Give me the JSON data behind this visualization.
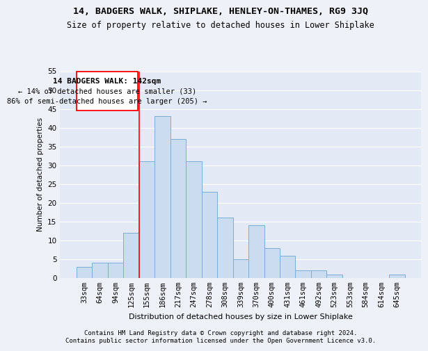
{
  "title": "14, BADGERS WALK, SHIPLAKE, HENLEY-ON-THAMES, RG9 3JQ",
  "subtitle": "Size of property relative to detached houses in Lower Shiplake",
  "xlabel": "Distribution of detached houses by size in Lower Shiplake",
  "ylabel": "Number of detached properties",
  "bar_color": "#ccdcf0",
  "bar_edge_color": "#7aaed6",
  "categories": [
    "33sqm",
    "64sqm",
    "94sqm",
    "125sqm",
    "155sqm",
    "186sqm",
    "217sqm",
    "247sqm",
    "278sqm",
    "308sqm",
    "339sqm",
    "370sqm",
    "400sqm",
    "431sqm",
    "461sqm",
    "492sqm",
    "523sqm",
    "553sqm",
    "584sqm",
    "614sqm",
    "645sqm"
  ],
  "values": [
    3,
    4,
    4,
    12,
    31,
    43,
    37,
    31,
    23,
    16,
    5,
    14,
    8,
    6,
    2,
    2,
    1,
    0,
    0,
    0,
    1
  ],
  "ylim": [
    0,
    55
  ],
  "yticks": [
    0,
    5,
    10,
    15,
    20,
    25,
    30,
    35,
    40,
    45,
    50,
    55
  ],
  "annotation_title": "14 BADGERS WALK: 142sqm",
  "annotation_line1": "← 14% of detached houses are smaller (33)",
  "annotation_line2": "86% of semi-detached houses are larger (205) →",
  "footer1": "Contains HM Land Registry data © Crown copyright and database right 2024.",
  "footer2": "Contains public sector information licensed under the Open Government Licence v3.0.",
  "background_color": "#eef2f8",
  "plot_bg_color": "#e4eaf5",
  "grid_color": "#ffffff",
  "title_fontsize": 9.5,
  "subtitle_fontsize": 8.5,
  "axis_fontsize": 7.5,
  "annotation_fontsize": 8,
  "footer_fontsize": 6.5
}
